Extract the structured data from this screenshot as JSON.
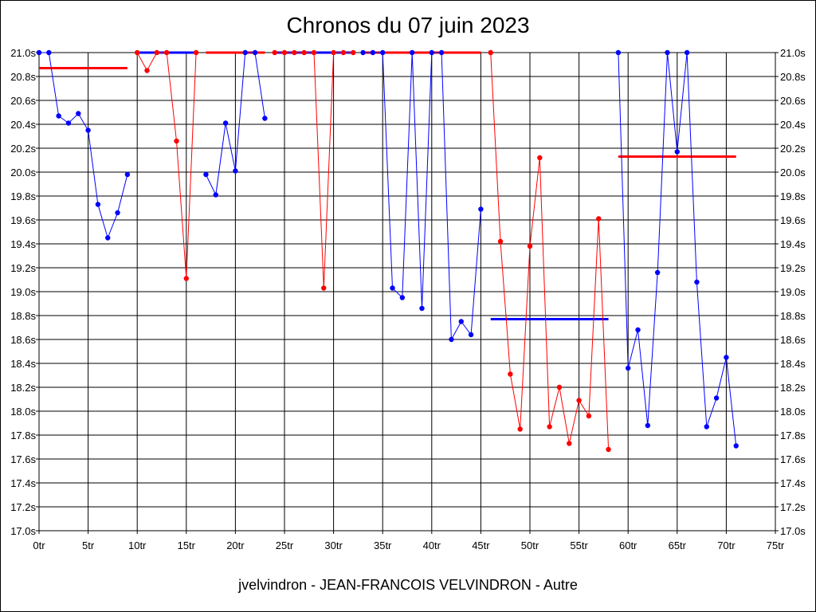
{
  "chart_data": {
    "type": "line",
    "title": "Chronos du 07 juin 2023",
    "xlabel": "jvelvindron - JEAN-FRANCOIS VELVINDRON - Autre",
    "ylabel": "",
    "xlim": [
      0,
      75
    ],
    "ylim": [
      17.0,
      21.0
    ],
    "x_ticks": [
      0,
      5,
      10,
      15,
      20,
      25,
      30,
      35,
      40,
      45,
      50,
      55,
      60,
      65,
      70,
      75
    ],
    "x_tick_labels": [
      "0tr",
      "5tr",
      "10tr",
      "15tr",
      "20tr",
      "25tr",
      "30tr",
      "35tr",
      "40tr",
      "45tr",
      "50tr",
      "55tr",
      "60tr",
      "65tr",
      "70tr",
      "75tr"
    ],
    "y_ticks": [
      17.0,
      17.2,
      17.4,
      17.6,
      17.8,
      18.0,
      18.2,
      18.4,
      18.6,
      18.8,
      19.0,
      19.2,
      19.4,
      19.6,
      19.8,
      20.0,
      20.2,
      20.4,
      20.6,
      20.8,
      21.0
    ],
    "y_tick_labels": [
      "17.0s",
      "17.2s",
      "17.4s",
      "17.6s",
      "17.8s",
      "18.0s",
      "18.2s",
      "18.4s",
      "18.6s",
      "18.8s",
      "19.0s",
      "19.2s",
      "19.4s",
      "19.6s",
      "19.8s",
      "20.0s",
      "20.2s",
      "20.4s",
      "20.6s",
      "20.8s",
      "21.0s"
    ],
    "grid": true,
    "colors": {
      "blue": "#0000ff",
      "red": "#ff0000",
      "grid": "#000000"
    },
    "series": [
      {
        "color": "blue",
        "points": [
          [
            0,
            21.0
          ],
          [
            1,
            21.0
          ],
          [
            2,
            20.47
          ],
          [
            3,
            20.41
          ],
          [
            4,
            20.49
          ],
          [
            5,
            20.35
          ],
          [
            6,
            19.73
          ],
          [
            7,
            19.45
          ],
          [
            8,
            19.66
          ],
          [
            9,
            19.98
          ]
        ]
      },
      {
        "color": "red",
        "points": [
          [
            10,
            21.0
          ],
          [
            11,
            20.85
          ],
          [
            12,
            21.0
          ],
          [
            13,
            21.0
          ],
          [
            14,
            20.26
          ],
          [
            15,
            19.11
          ],
          [
            16,
            21.0
          ]
        ]
      },
      {
        "color": "blue",
        "points": [
          [
            17,
            19.98
          ],
          [
            18,
            19.81
          ],
          [
            19,
            20.41
          ],
          [
            20,
            20.01
          ],
          [
            21,
            21.0
          ],
          [
            22,
            21.0
          ],
          [
            23,
            20.45
          ]
        ]
      },
      {
        "color": "red",
        "points": [
          [
            24,
            21.0
          ],
          [
            25,
            21.0
          ],
          [
            26,
            21.0
          ],
          [
            27,
            21.0
          ],
          [
            28,
            21.0
          ],
          [
            29,
            19.03
          ],
          [
            30,
            21.0
          ],
          [
            31,
            21.0
          ],
          [
            32,
            21.0
          ]
        ]
      },
      {
        "color": "blue",
        "points": [
          [
            33,
            21.0
          ],
          [
            34,
            21.0
          ],
          [
            35,
            21.0
          ],
          [
            36,
            19.03
          ],
          [
            37,
            18.95
          ],
          [
            38,
            21.0
          ],
          [
            39,
            18.86
          ],
          [
            40,
            21.0
          ],
          [
            41,
            21.0
          ],
          [
            42,
            18.6
          ],
          [
            43,
            18.75
          ],
          [
            44,
            18.64
          ],
          [
            45,
            19.69
          ]
        ]
      },
      {
        "color": "red",
        "points": [
          [
            46,
            21.0
          ],
          [
            47,
            19.42
          ],
          [
            48,
            18.31
          ],
          [
            49,
            17.85
          ],
          [
            50,
            19.38
          ],
          [
            51,
            20.12
          ],
          [
            52,
            17.87
          ],
          [
            53,
            18.2
          ],
          [
            54,
            17.73
          ],
          [
            55,
            18.09
          ],
          [
            56,
            17.96
          ],
          [
            57,
            19.61
          ],
          [
            58,
            17.68
          ]
        ]
      },
      {
        "color": "blue",
        "points": [
          [
            59,
            21.0
          ],
          [
            60,
            18.36
          ],
          [
            61,
            18.68
          ],
          [
            62,
            17.88
          ],
          [
            63,
            19.16
          ],
          [
            64,
            21.0
          ],
          [
            65,
            20.17
          ],
          [
            66,
            21.0
          ],
          [
            67,
            19.08
          ],
          [
            68,
            17.87
          ],
          [
            69,
            18.11
          ],
          [
            70,
            18.45
          ],
          [
            71,
            17.71
          ]
        ]
      }
    ],
    "reference_lines": [
      {
        "color": "red",
        "x": [
          0,
          9
        ],
        "y": 20.87
      },
      {
        "color": "blue",
        "x": [
          10,
          16
        ],
        "y": 21.0
      },
      {
        "color": "red",
        "x": [
          17,
          23
        ],
        "y": 21.0
      },
      {
        "color": "blue",
        "x": [
          24,
          32
        ],
        "y": 21.0
      },
      {
        "color": "red",
        "x": [
          33,
          45
        ],
        "y": 21.0
      },
      {
        "color": "blue",
        "x": [
          46,
          58
        ],
        "y": 18.77
      },
      {
        "color": "red",
        "x": [
          59,
          71
        ],
        "y": 20.13
      }
    ]
  }
}
